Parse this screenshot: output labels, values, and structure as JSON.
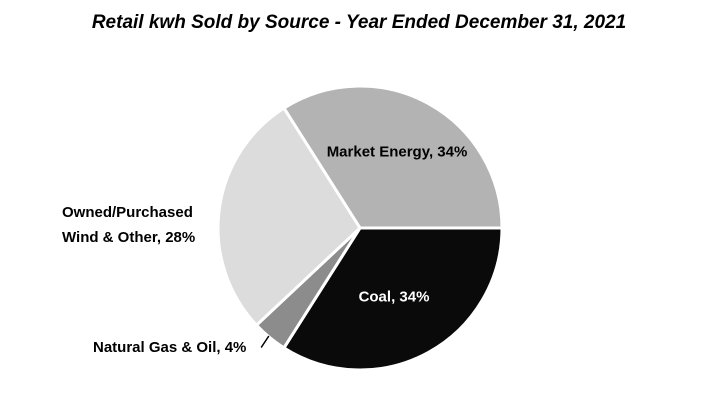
{
  "title": "Retail kwh Sold by Source - Year Ended December 31, 2021",
  "chart_data": {
    "type": "pie",
    "title": "Retail kwh Sold by Source - Year Ended December 31, 2021",
    "background": "#ffffff",
    "legend": "none",
    "start_angle_deg": -32.4,
    "direction": "clockwise",
    "separator_color": "#ffffff",
    "slices": [
      {
        "label": "Market Energy",
        "value_pct": 34,
        "display": "Market Energy, 34%",
        "color": "#b3b3b3",
        "label_color": "#000000",
        "label_position": "inside"
      },
      {
        "label": "Coal",
        "value_pct": 34,
        "display": "Coal, 34%",
        "color": "#0a0a0a",
        "label_color": "#ffffff",
        "label_position": "inside"
      },
      {
        "label": "Natural Gas & Oil",
        "value_pct": 4,
        "display": "Natural Gas & Oil, 4%",
        "color": "#8c8c8c",
        "label_color": "#000000",
        "label_position": "outside",
        "leader_line": true
      },
      {
        "label": "Owned/Purchased Wind & Other",
        "value_pct": 28,
        "display_lines": [
          "Owned/Purchased",
          "Wind & Other, 28%"
        ],
        "color": "#dcdcdc",
        "label_color": "#000000",
        "label_position": "outside"
      }
    ]
  }
}
